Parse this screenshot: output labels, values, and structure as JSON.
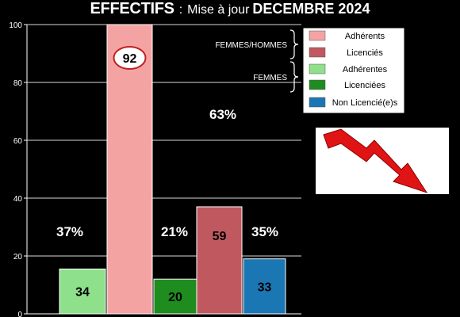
{
  "header": {
    "title": "EFFECTIFS",
    "separator": ":",
    "subtitle": "Mise à jour",
    "date": "DECEMBRE 2024"
  },
  "chart_data": {
    "type": "bar",
    "ylim": [
      0,
      100
    ],
    "yticks": [
      0,
      20,
      40,
      60,
      80,
      100
    ],
    "grid": true,
    "legend_placement": "top-right",
    "bars": [
      {
        "name": "Adhérentes",
        "value": 34,
        "height": 15.5,
        "color": "#8ee08a",
        "label_color": "#000000"
      },
      {
        "name": "Adhérents",
        "value": 92,
        "height": 100,
        "color": "#f4a3a3",
        "label_color": "#000000",
        "circled": true
      },
      {
        "name": "Licenciées",
        "value": 20,
        "height": 12,
        "color": "#1e8c1e",
        "label_color": "#000000"
      },
      {
        "name": "Licenciés",
        "value": 59,
        "height": 37,
        "color": "#c0595f",
        "label_color": "#000000"
      },
      {
        "name": "Non Licencié(e)s",
        "value": 33,
        "height": 19,
        "color": "#1b77b4",
        "label_color": "#000000"
      }
    ],
    "percent_labels": [
      "37%",
      "21%",
      "35%",
      "63%"
    ],
    "legend": {
      "groups": [
        "FEMMES/HOMMES",
        "FEMMES"
      ],
      "entries": [
        {
          "label": "Adhérents",
          "color": "#f4a3a3"
        },
        {
          "label": "Licenciés",
          "color": "#c0595f"
        },
        {
          "label": "Adhérentes",
          "color": "#8ee08a"
        },
        {
          "label": "Licenciées",
          "color": "#1e8c1e"
        },
        {
          "label": "Non Licencié(e)s",
          "color": "#1b77b4"
        }
      ]
    },
    "trend_icon": "red-down-arrow-icon"
  }
}
